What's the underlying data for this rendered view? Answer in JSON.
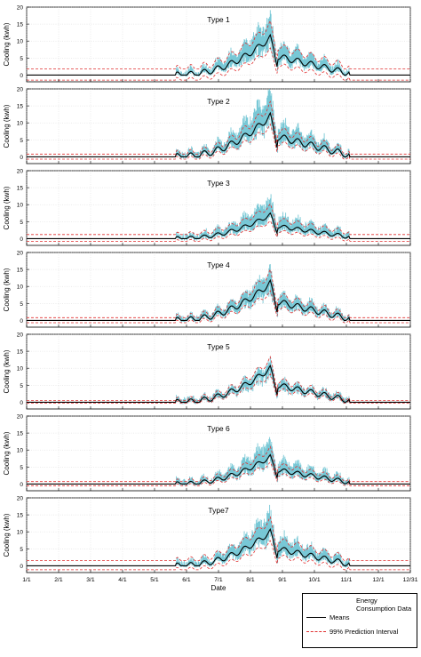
{
  "chart_data": {
    "type": "line",
    "xlabel": "Date",
    "ylabel": "Cooling (kwh)",
    "x_ticks": [
      "1/1",
      "2/1",
      "3/1",
      "4/1",
      "5/1",
      "6/1",
      "7/1",
      "8/1",
      "9/1",
      "10/1",
      "11/1",
      "12/1",
      "12/31"
    ],
    "ylim": [
      -2,
      20
    ],
    "y_ticks": [
      0,
      5,
      10,
      15,
      20
    ],
    "grid": true,
    "colors": {
      "data": "#4bb5c8",
      "mean": "#000000",
      "interval": "#e03030"
    },
    "legend": {
      "title": "Energy Consumption Data",
      "items": [
        {
          "label": "Means",
          "style": "solid",
          "color": "#000000"
        },
        {
          "label": "99% Prediction Interval",
          "style": "dashed",
          "color": "#e03030"
        }
      ],
      "placement": "bottom-right"
    },
    "panels": [
      {
        "title": "Type 1",
        "off_season_mean": 0,
        "interval": [
          -1.5,
          1.8
        ],
        "peak_mean": 11,
        "peak_data": 16
      },
      {
        "title": "Type 2",
        "off_season_mean": 0,
        "interval": [
          -0.7,
          0.8
        ],
        "peak_mean": 12,
        "peak_data": 18
      },
      {
        "title": "Type 3",
        "off_season_mean": 0,
        "interval": [
          -0.8,
          1.2
        ],
        "peak_mean": 7,
        "peak_data": 11
      },
      {
        "title": "Type 4",
        "off_season_mean": 0,
        "interval": [
          -0.7,
          0.8
        ],
        "peak_mean": 11,
        "peak_data": 14
      },
      {
        "title": "Type 5",
        "off_season_mean": 0,
        "interval": [
          -0.3,
          0.5
        ],
        "peak_mean": 10,
        "peak_data": 11
      },
      {
        "title": "Type 6",
        "off_season_mean": 0,
        "interval": [
          -0.5,
          0.7
        ],
        "peak_mean": 8,
        "peak_data": 12
      },
      {
        "title": "Type7",
        "off_season_mean": 0,
        "interval": [
          -1.2,
          1.5
        ],
        "peak_mean": 10,
        "peak_data": 15
      }
    ]
  }
}
